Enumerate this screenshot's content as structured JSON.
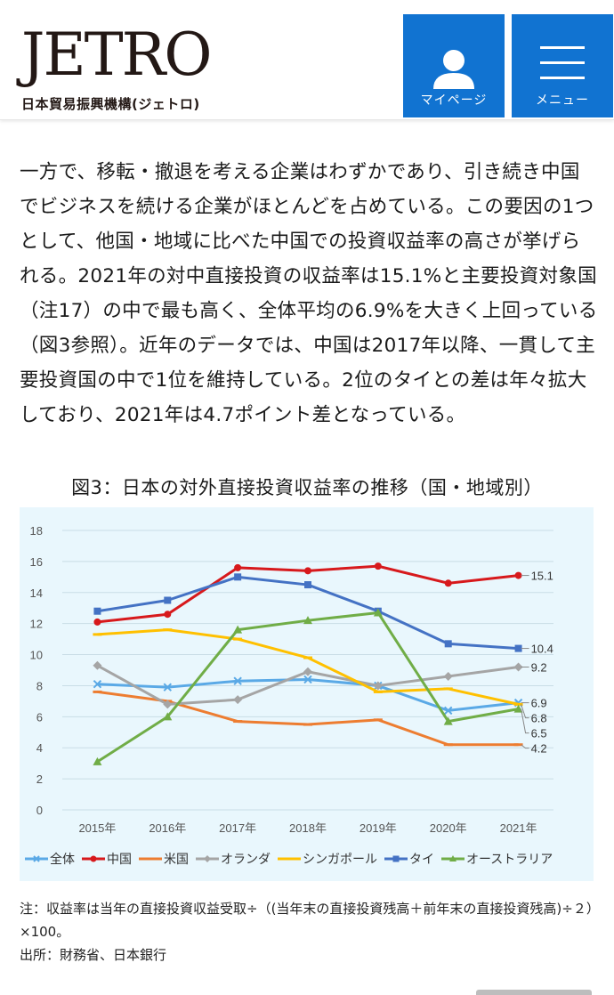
{
  "header": {
    "logo_text": "JETRO",
    "logo_sub": "日本貿易振興機構(ジェトロ)",
    "mypage_label": "マイページ",
    "menu_label": "メニュー",
    "accent": "#1173d1"
  },
  "article": {
    "paragraph": "一方で、移転・撤退を考える企業はわずかであり、引き続き中国でビジネスを続ける企業がほとんどを占めている。この要因の1つとして、他国・地域に比べた中国での投資収益率の高さが挙げられる。2021年の対中直接投資の収益率は15.1%と主要投資対象国（注17）の中で最も高く、全体平均の6.9%を大きく上回っている（図3参照）。近年のデータでは、中国は2017年以降、一貫して主要投資国の中で1位を維持している。2位のタイとの差は年々拡大しており、2021年は4.7ポイント差となっている。"
  },
  "figure": {
    "title": "図3：日本の対外直接投資収益率の推移（国・地域別）",
    "note": "注：収益率は当年の直接投資収益受取÷（(当年末の直接投資残高＋前年末の直接投資残高)÷２）×100。",
    "source": "出所：財務省、日本銀行"
  },
  "chart_data": {
    "type": "line",
    "title": "図3：日本の対外直接投資収益率の推移（国・地域別）",
    "categories": [
      "2015年",
      "2016年",
      "2017年",
      "2018年",
      "2019年",
      "2020年",
      "2021年"
    ],
    "ylim": [
      0,
      18
    ],
    "yticks": [
      0,
      2,
      4,
      6,
      8,
      10,
      12,
      14,
      16,
      18
    ],
    "grid": true,
    "legend_position": "bottom",
    "series": [
      {
        "name": "全体",
        "color": "#5aa9e6",
        "marker": "x",
        "values": [
          8.1,
          7.9,
          8.3,
          8.4,
          8.0,
          6.4,
          6.9
        ],
        "end_label": "6.9"
      },
      {
        "name": "中国",
        "color": "#d7191c",
        "marker": "circle",
        "values": [
          12.1,
          12.6,
          15.6,
          15.4,
          15.7,
          14.6,
          15.1
        ],
        "end_label": "15.1"
      },
      {
        "name": "米国",
        "color": "#ed7d31",
        "marker": "dash",
        "values": [
          7.6,
          7.0,
          5.7,
          5.5,
          5.8,
          4.2,
          4.2
        ],
        "end_label": "4.2"
      },
      {
        "name": "オランダ",
        "color": "#a5a5a5",
        "marker": "diamond",
        "values": [
          9.3,
          6.8,
          7.1,
          8.9,
          8.0,
          8.6,
          9.2
        ],
        "end_label": "9.2"
      },
      {
        "name": "シンガポール",
        "color": "#ffc000",
        "marker": "dash",
        "values": [
          11.3,
          11.6,
          11.0,
          9.8,
          7.6,
          7.8,
          6.8
        ],
        "end_label": "6.8"
      },
      {
        "name": "タイ",
        "color": "#4472c4",
        "marker": "square",
        "values": [
          12.8,
          13.5,
          15.0,
          14.5,
          12.8,
          10.7,
          10.4
        ],
        "end_label": "10.4"
      },
      {
        "name": "オーストラリア",
        "color": "#70ad47",
        "marker": "triangle",
        "values": [
          3.1,
          6.0,
          11.6,
          12.2,
          12.7,
          5.7,
          6.5
        ],
        "end_label": "6.5"
      }
    ]
  }
}
